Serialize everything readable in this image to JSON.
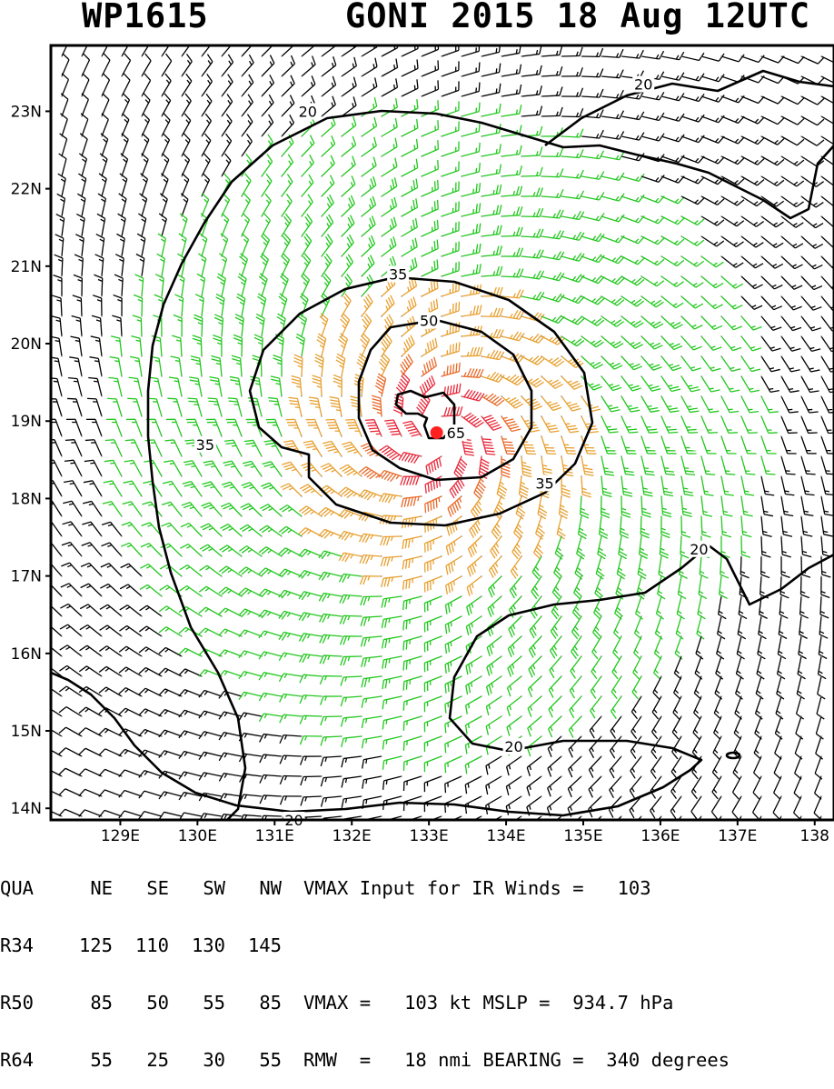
{
  "header": {
    "id": "WP1615",
    "title": "GONI 2015 18 Aug 12UTC"
  },
  "axes": {
    "lat_labels": [
      "23N",
      "22N",
      "21N",
      "20N",
      "19N",
      "18N",
      "17N",
      "16N",
      "15N",
      "14N"
    ],
    "lat_values": [
      23,
      22,
      21,
      20,
      19,
      18,
      17,
      16,
      15,
      14
    ],
    "lon_labels": [
      "129E",
      "130E",
      "131E",
      "132E",
      "133E",
      "134E",
      "135E",
      "136E",
      "137E",
      "138"
    ],
    "lon_values": [
      129,
      130,
      131,
      132,
      133,
      134,
      135,
      136,
      137,
      138
    ]
  },
  "storm": {
    "center_lon": 133.1,
    "center_lat": 18.85
  },
  "contour_labels": [
    {
      "text": "20",
      "lon": 131.43,
      "lat": 23.0
    },
    {
      "text": "20",
      "lon": 135.78,
      "lat": 23.35
    },
    {
      "text": "20",
      "lon": 136.5,
      "lat": 17.35
    },
    {
      "text": "20",
      "lon": 134.1,
      "lat": 14.8
    },
    {
      "text": "20",
      "lon": 131.25,
      "lat": 13.85
    },
    {
      "text": "35",
      "lon": 132.6,
      "lat": 20.9
    },
    {
      "text": "35",
      "lon": 130.1,
      "lat": 18.7
    },
    {
      "text": "35",
      "lon": 134.5,
      "lat": 18.2
    },
    {
      "text": "50",
      "lon": 133.0,
      "lat": 20.3
    },
    {
      "text": "65",
      "lon": 133.35,
      "lat": 18.85
    }
  ],
  "colors": {
    "weak": "#000000",
    "gale": "#22c81e",
    "storm": "#e8a030",
    "strong": "#e86a2a",
    "hurricane": "#e8283a",
    "center": "#ff2020"
  },
  "footer": {
    "header_row": [
      "QUA",
      "NE",
      "SE",
      "SW",
      "NW"
    ],
    "rows": [
      {
        "label": "R34",
        "values": [
          "125",
          "110",
          "130",
          "145"
        ]
      },
      {
        "label": "R50",
        "values": [
          "85",
          "50",
          "55",
          "85"
        ]
      },
      {
        "label": "R64",
        "values": [
          "55",
          "25",
          "30",
          "55"
        ]
      }
    ],
    "line1": "VMAX Input for IR Winds =   103",
    "line3": "VMAX =   103 kt MSLP =  934.7 hPa",
    "line4": "RMW  =   18 nmi BEARING =  340 degrees"
  }
}
